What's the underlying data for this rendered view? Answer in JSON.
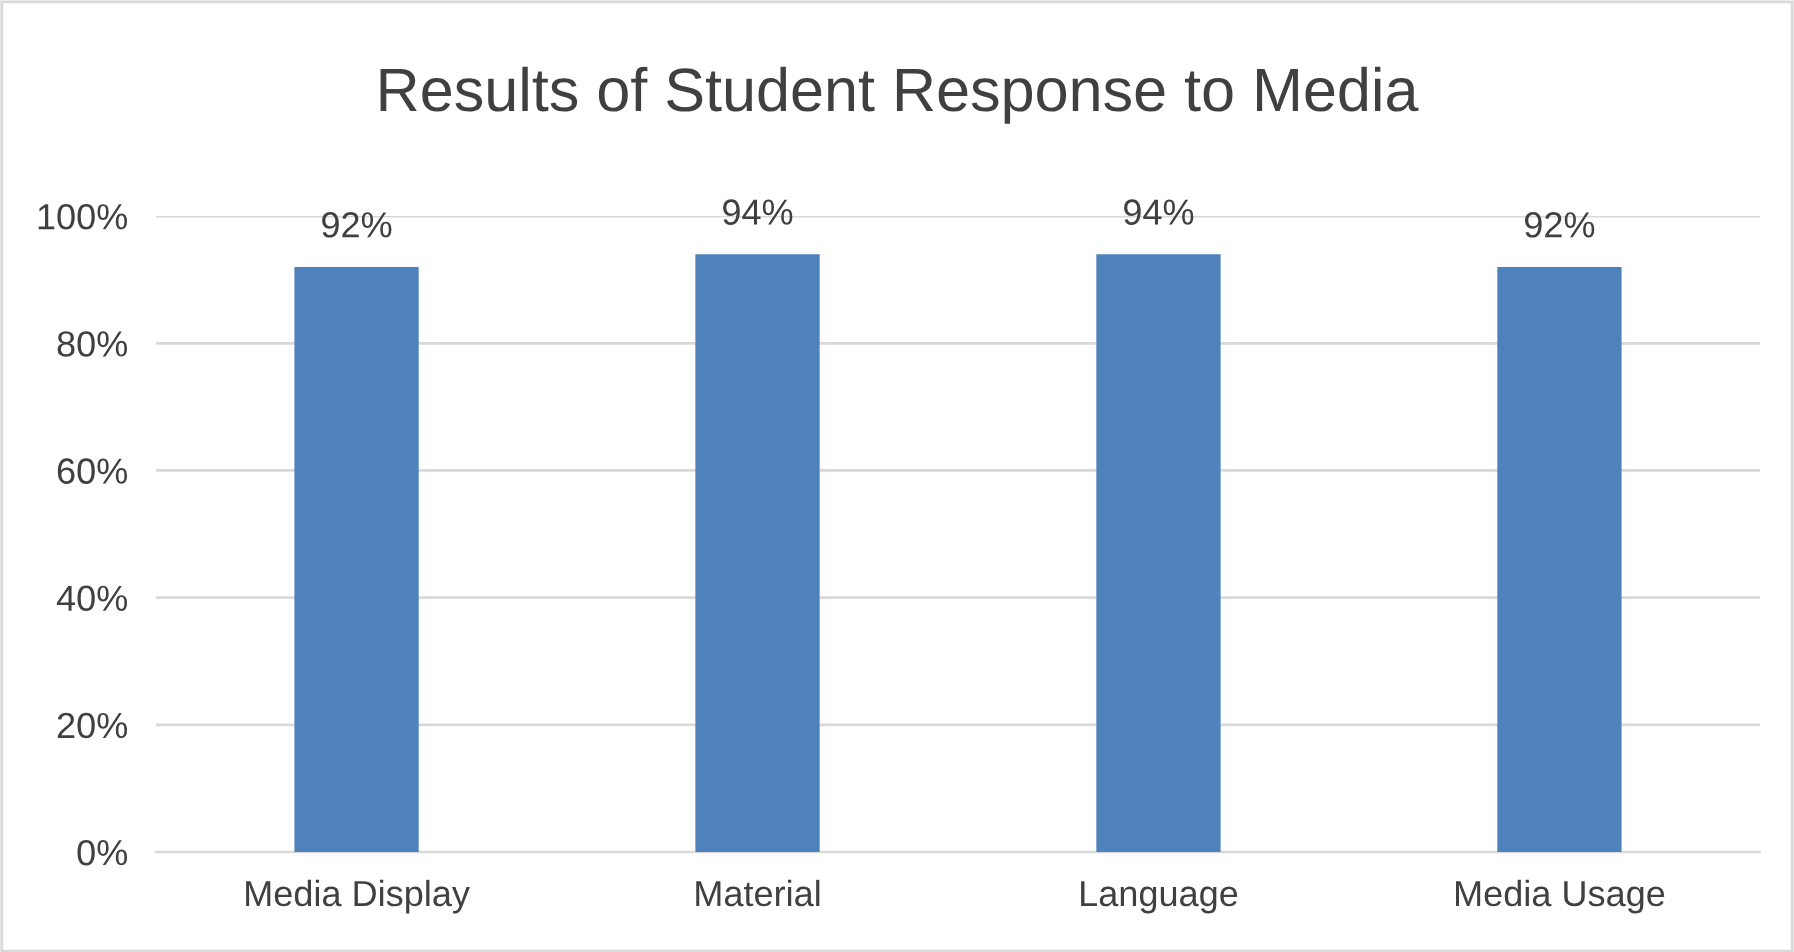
{
  "chart_data": {
    "type": "bar",
    "title": "Results of Student Response to Media",
    "categories": [
      "Media Display",
      "Material",
      "Language",
      "Media Usage"
    ],
    "values": [
      92,
      94,
      94,
      92
    ],
    "value_labels": [
      "92%",
      "94%",
      "94%",
      "92%"
    ],
    "color": "#4f81bd",
    "ylim": [
      0,
      100
    ],
    "yticks": [
      {
        "value": 0,
        "label": "0%"
      },
      {
        "value": 20,
        "label": "20%"
      },
      {
        "value": 40,
        "label": "40%"
      },
      {
        "value": 60,
        "label": "60%"
      },
      {
        "value": 80,
        "label": "80%"
      },
      {
        "value": 100,
        "label": "100%"
      }
    ],
    "grid": "y"
  }
}
